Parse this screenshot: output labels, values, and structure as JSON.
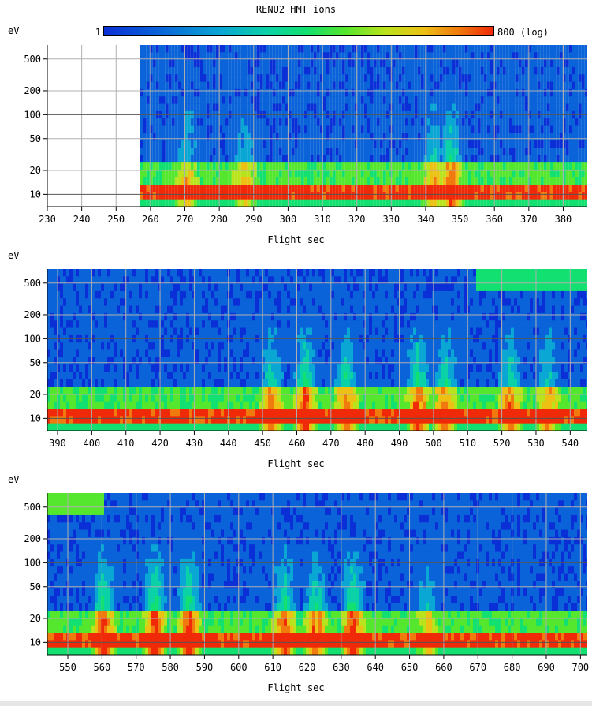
{
  "title": "RENU2 HMT ions",
  "colorbar": {
    "min_label": "1",
    "max_label": "800 (log)",
    "colors": [
      "#0b2fd6",
      "#0a63d8",
      "#0aa6d4",
      "#0ad2a6",
      "#12e070",
      "#55e62e",
      "#b9e31c",
      "#ecc114",
      "#f07a0e",
      "#f02a08"
    ]
  },
  "chart_data": [
    {
      "type": "heatmap",
      "ylabel": "eV",
      "xlabel": "Flight sec",
      "xlim": [
        230,
        387
      ],
      "yscale": "log",
      "yticks": [
        "10",
        "20",
        "50",
        "100",
        "200",
        "500"
      ],
      "xticks": [
        "230",
        "240",
        "250",
        "260",
        "270",
        "280",
        "290",
        "300",
        "310",
        "320",
        "330",
        "340",
        "350",
        "360",
        "370",
        "380"
      ],
      "data_start": 257,
      "features": [
        {
          "x": 270,
          "level": 0.5
        },
        {
          "x": 287,
          "level": 0.45
        },
        {
          "x": 347,
          "level": 0.75
        },
        {
          "x": 342,
          "level": 0.55
        }
      ]
    },
    {
      "type": "heatmap",
      "ylabel": "eV",
      "xlabel": "Flight sec",
      "xlim": [
        387,
        545
      ],
      "yscale": "log",
      "yticks": [
        "10",
        "20",
        "50",
        "100",
        "200",
        "500"
      ],
      "xticks": [
        "390",
        "400",
        "410",
        "420",
        "430",
        "440",
        "450",
        "460",
        "470",
        "480",
        "490",
        "500",
        "510",
        "520",
        "530",
        "540"
      ],
      "data_start": 387,
      "features": [
        {
          "x": 452,
          "level": 0.7
        },
        {
          "x": 462,
          "level": 0.9
        },
        {
          "x": 474,
          "level": 0.75
        },
        {
          "x": 495,
          "level": 0.8
        },
        {
          "x": 503,
          "level": 0.7
        },
        {
          "x": 522,
          "level": 0.75
        },
        {
          "x": 533,
          "level": 0.6
        }
      ]
    },
    {
      "type": "heatmap",
      "ylabel": "eV",
      "xlabel": "Flight sec",
      "xlim": [
        544,
        702
      ],
      "yscale": "log",
      "yticks": [
        "10",
        "20",
        "50",
        "100",
        "200",
        "500"
      ],
      "xticks": [
        "550",
        "560",
        "570",
        "580",
        "590",
        "600",
        "610",
        "620",
        "630",
        "640",
        "650",
        "660",
        "670",
        "680",
        "690",
        "700"
      ],
      "data_start": 544,
      "features": [
        {
          "x": 560,
          "level": 0.9
        },
        {
          "x": 575,
          "level": 0.95
        },
        {
          "x": 585,
          "level": 0.9
        },
        {
          "x": 613,
          "level": 0.8
        },
        {
          "x": 622,
          "level": 0.75
        },
        {
          "x": 633,
          "level": 0.95
        },
        {
          "x": 655,
          "level": 0.5
        }
      ]
    }
  ]
}
